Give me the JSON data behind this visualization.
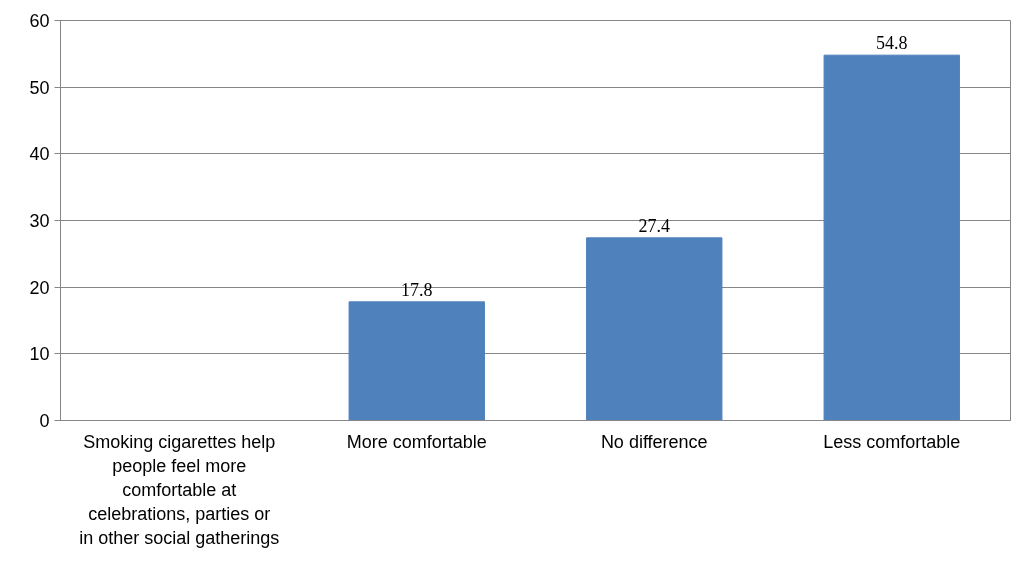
{
  "chart_data": {
    "type": "bar",
    "categories": [
      "Smoking cigarettes help people feel more comfortable at celebrations, parties or in other social gatherings",
      "More comfortable",
      "No difference",
      "Less comfortable"
    ],
    "values": [
      null,
      17.8,
      27.4,
      54.8
    ],
    "color": "#4f81bd",
    "ylim": [
      0,
      60
    ],
    "yticks": [
      0,
      10,
      20,
      30,
      40,
      50,
      60
    ],
    "grid": "y",
    "data_labels": true
  }
}
